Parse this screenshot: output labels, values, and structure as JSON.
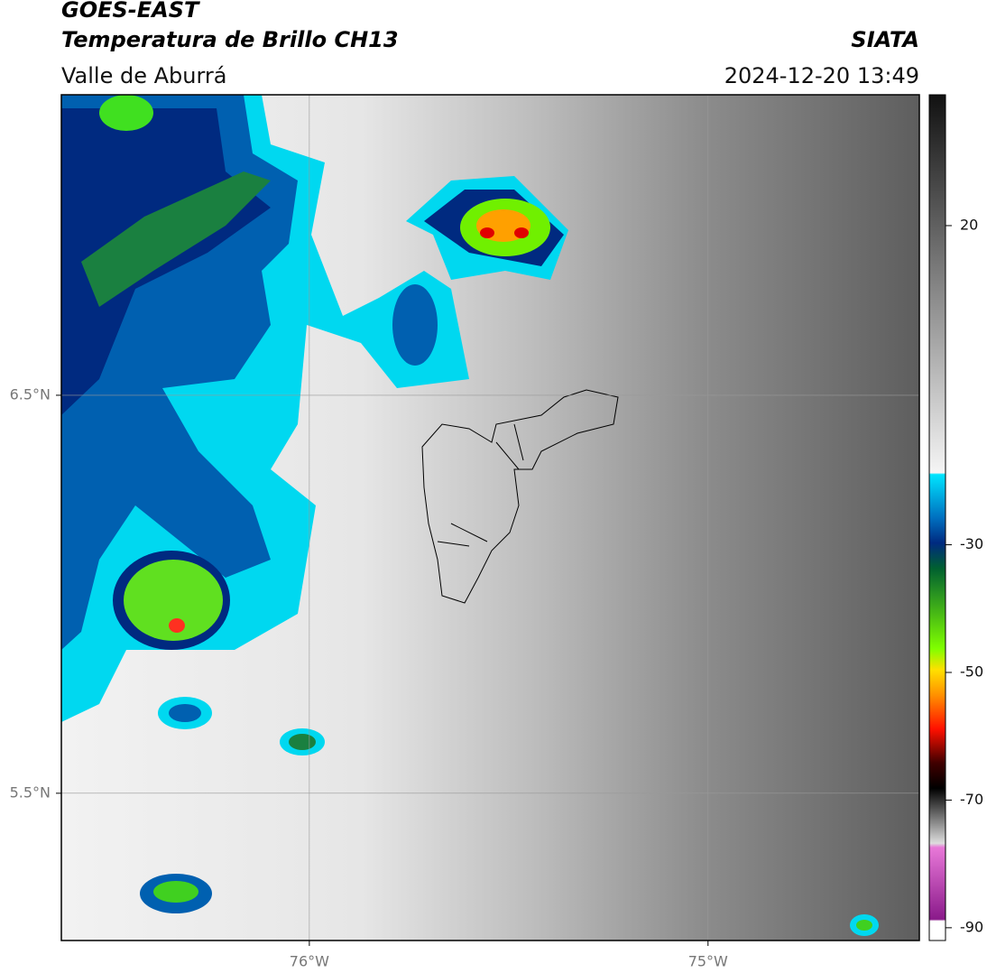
{
  "header": {
    "title": "GOES-EAST",
    "subtitle": "Temperatura de Brillo CH13",
    "region": "Valle de Aburrá",
    "source": "SIATA",
    "datetime": "2024-12-20 13:49"
  },
  "map": {
    "lon_lim": [
      -76.622,
      -74.47
    ],
    "lat_lim": [
      5.13,
      7.255
    ],
    "lon_ticks": [
      {
        "value": -76,
        "label": "76°W"
      },
      {
        "value": -75,
        "label": "75°W"
      }
    ],
    "lat_ticks": [
      {
        "value": 6.5,
        "label": "6.5°N"
      },
      {
        "value": 5.5,
        "label": "5.5°N"
      }
    ],
    "grid": true
  },
  "colorbar": {
    "lim": [
      -92,
      40.5
    ],
    "ticks": [
      20,
      -30,
      -50,
      -70,
      -90
    ]
  }
}
